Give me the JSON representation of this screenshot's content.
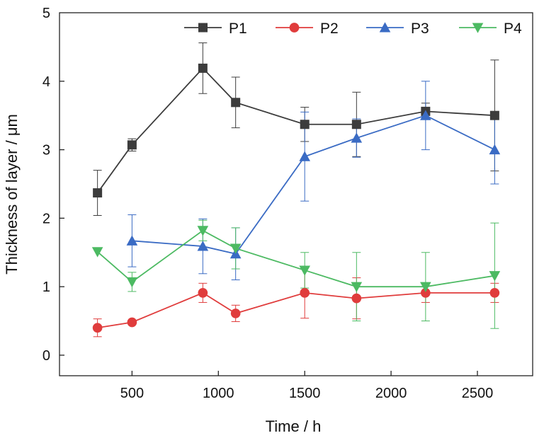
{
  "chart_data": {
    "type": "line",
    "xlabel": "Time / h",
    "ylabel": "Thickness of layer / μm",
    "xlim": [
      80,
      2820
    ],
    "ylim": [
      -0.3,
      5
    ],
    "x_ticks": [
      500,
      1000,
      1500,
      2000,
      2500
    ],
    "x_tick_labels": [
      "500",
      "1000",
      "1500",
      "2000",
      "2500"
    ],
    "y_ticks": [
      0,
      1,
      2,
      3,
      4,
      5
    ],
    "y_tick_labels": [
      "0",
      "1",
      "2",
      "3",
      "4",
      "5"
    ],
    "legend_position": "top",
    "grid": false,
    "series": [
      {
        "name": "P1",
        "color": "#3c3c3c",
        "marker": "square",
        "x": [
          300,
          500,
          910,
          1100,
          1500,
          1800,
          2200,
          2600
        ],
        "y": [
          2.37,
          3.07,
          4.19,
          3.69,
          3.37,
          3.37,
          3.56,
          3.5
        ],
        "err": [
          0.33,
          0.09,
          0.37,
          0.37,
          0.25,
          0.47,
          0.12,
          0.81
        ]
      },
      {
        "name": "P2",
        "color": "#e03c3c",
        "marker": "circle",
        "x": [
          300,
          500,
          910,
          1100,
          1500,
          1800,
          2200,
          2600
        ],
        "y": [
          0.4,
          0.48,
          0.91,
          0.61,
          0.91,
          0.83,
          0.91,
          0.91
        ],
        "err": [
          0.13,
          0.02,
          0.14,
          0.12,
          0.37,
          0.3,
          0.14,
          0.14
        ]
      },
      {
        "name": "P3",
        "color": "#3a6bc4",
        "marker": "triangle-up",
        "x": [
          500,
          910,
          1100,
          1500,
          1800,
          2200,
          2600
        ],
        "y": [
          1.67,
          1.59,
          1.48,
          2.9,
          3.17,
          3.5,
          3.0
        ],
        "err": [
          0.38,
          0.4,
          0.38,
          0.65,
          0.28,
          0.5,
          0.5
        ]
      },
      {
        "name": "P4",
        "color": "#4cba62",
        "marker": "triangle-down",
        "x": [
          300,
          500,
          910,
          1100,
          1500,
          1800,
          2200,
          2600
        ],
        "y": [
          1.51,
          1.07,
          1.82,
          1.56,
          1.24,
          1.0,
          1.0,
          1.16
        ],
        "err": [
          0.0,
          0.14,
          0.15,
          0.3,
          0.26,
          0.5,
          0.5,
          0.77
        ]
      }
    ]
  }
}
